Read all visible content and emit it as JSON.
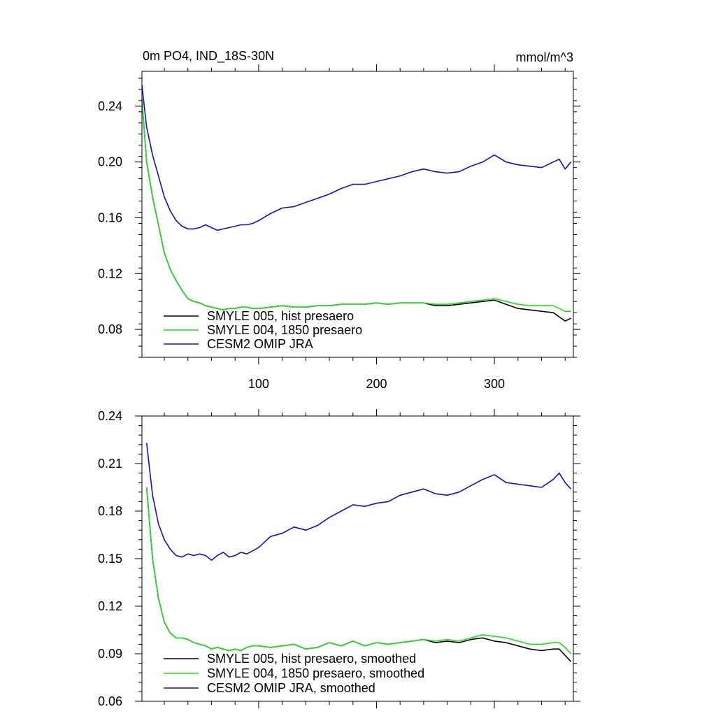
{
  "colors": {
    "black": "#000000",
    "green": "#22dd22",
    "blue": "#1010cc"
  },
  "chart_data": [
    {
      "type": "line",
      "title": "0m PO4, IND_18S-30N",
      "units": "mmol/m^3",
      "xlim": [
        1,
        367
      ],
      "ylim": [
        0.06,
        0.265
      ],
      "xticks": [
        100,
        200,
        300
      ],
      "yticks": [
        0.08,
        0.12,
        0.16,
        0.2,
        0.24
      ],
      "ytick_labels": [
        "0.08",
        "0.12",
        "0.16",
        "0.20",
        "0.24"
      ],
      "grid": false,
      "legend_position": "bottom-left",
      "series": [
        {
          "name": "SMYLE 005, hist presaero",
          "color": "#000000",
          "x": [
            1,
            5,
            10,
            15,
            20,
            25,
            30,
            35,
            40,
            45,
            50,
            55,
            60,
            65,
            70,
            75,
            80,
            85,
            90,
            95,
            100,
            110,
            120,
            130,
            140,
            150,
            160,
            170,
            180,
            190,
            200,
            210,
            220,
            230,
            240,
            250,
            260,
            270,
            280,
            290,
            300,
            310,
            320,
            330,
            340,
            350,
            355,
            360,
            365
          ],
          "y": [
            0.245,
            0.2,
            0.175,
            0.155,
            0.135,
            0.123,
            0.115,
            0.108,
            0.102,
            0.1,
            0.099,
            0.097,
            0.096,
            0.095,
            0.094,
            0.095,
            0.095,
            0.096,
            0.096,
            0.095,
            0.095,
            0.096,
            0.097,
            0.096,
            0.096,
            0.097,
            0.097,
            0.098,
            0.098,
            0.098,
            0.099,
            0.098,
            0.099,
            0.099,
            0.099,
            0.097,
            0.097,
            0.098,
            0.099,
            0.1,
            0.101,
            0.098,
            0.095,
            0.094,
            0.093,
            0.092,
            0.089,
            0.086,
            0.088
          ]
        },
        {
          "name": "SMYLE 004, 1850 presaero",
          "color": "#22dd22",
          "x": [
            1,
            5,
            10,
            15,
            20,
            25,
            30,
            35,
            40,
            45,
            50,
            55,
            60,
            65,
            70,
            75,
            80,
            85,
            90,
            95,
            100,
            110,
            120,
            130,
            140,
            150,
            160,
            170,
            180,
            190,
            200,
            210,
            220,
            230,
            240,
            250,
            260,
            270,
            280,
            290,
            300,
            310,
            320,
            330,
            340,
            350,
            355,
            360,
            365
          ],
          "y": [
            0.245,
            0.2,
            0.175,
            0.155,
            0.135,
            0.123,
            0.115,
            0.108,
            0.102,
            0.1,
            0.099,
            0.097,
            0.096,
            0.095,
            0.094,
            0.095,
            0.095,
            0.096,
            0.096,
            0.095,
            0.095,
            0.096,
            0.097,
            0.096,
            0.096,
            0.097,
            0.097,
            0.098,
            0.098,
            0.098,
            0.099,
            0.098,
            0.099,
            0.099,
            0.099,
            0.098,
            0.098,
            0.099,
            0.1,
            0.101,
            0.102,
            0.1,
            0.098,
            0.097,
            0.097,
            0.097,
            0.095,
            0.093,
            0.093
          ]
        },
        {
          "name": "CESM2 OMIP JRA",
          "color": "#1010cc",
          "x": [
            1,
            5,
            10,
            15,
            20,
            25,
            30,
            35,
            40,
            45,
            50,
            55,
            60,
            65,
            70,
            75,
            80,
            85,
            90,
            95,
            100,
            110,
            120,
            130,
            140,
            150,
            160,
            170,
            180,
            190,
            200,
            210,
            220,
            230,
            240,
            250,
            260,
            270,
            280,
            290,
            300,
            310,
            320,
            330,
            340,
            350,
            355,
            360,
            365
          ],
          "y": [
            0.255,
            0.225,
            0.205,
            0.19,
            0.175,
            0.165,
            0.158,
            0.154,
            0.152,
            0.152,
            0.153,
            0.155,
            0.153,
            0.151,
            0.152,
            0.153,
            0.154,
            0.155,
            0.155,
            0.156,
            0.158,
            0.163,
            0.167,
            0.168,
            0.171,
            0.174,
            0.177,
            0.181,
            0.184,
            0.184,
            0.186,
            0.188,
            0.19,
            0.193,
            0.195,
            0.193,
            0.192,
            0.193,
            0.197,
            0.2,
            0.205,
            0.2,
            0.198,
            0.197,
            0.196,
            0.2,
            0.202,
            0.195,
            0.2
          ]
        }
      ]
    },
    {
      "type": "line",
      "xlim": [
        1,
        367
      ],
      "ylim": [
        0.06,
        0.24
      ],
      "xticks": [
        100,
        200,
        300
      ],
      "yticks": [
        0.06,
        0.09,
        0.12,
        0.15,
        0.18,
        0.21,
        0.24
      ],
      "ytick_labels": [
        "0.06",
        "0.09",
        "0.12",
        "0.15",
        "0.18",
        "0.21",
        "0.24"
      ],
      "grid": false,
      "legend_position": "bottom-left",
      "series": [
        {
          "name": "SMYLE 005, hist presaero, smoothed",
          "color": "#000000",
          "x": [
            5,
            10,
            15,
            20,
            25,
            30,
            35,
            40,
            45,
            50,
            55,
            60,
            65,
            70,
            75,
            80,
            85,
            90,
            95,
            100,
            110,
            120,
            130,
            140,
            150,
            160,
            170,
            180,
            190,
            200,
            210,
            220,
            230,
            240,
            250,
            260,
            270,
            280,
            290,
            300,
            310,
            320,
            330,
            340,
            350,
            355,
            360,
            365
          ],
          "y": [
            0.195,
            0.15,
            0.125,
            0.11,
            0.103,
            0.1,
            0.1,
            0.099,
            0.097,
            0.096,
            0.095,
            0.093,
            0.094,
            0.093,
            0.092,
            0.093,
            0.092,
            0.094,
            0.095,
            0.095,
            0.094,
            0.095,
            0.096,
            0.093,
            0.094,
            0.097,
            0.095,
            0.098,
            0.095,
            0.097,
            0.096,
            0.097,
            0.098,
            0.099,
            0.097,
            0.098,
            0.097,
            0.099,
            0.1,
            0.098,
            0.097,
            0.095,
            0.093,
            0.092,
            0.093,
            0.093,
            0.089,
            0.085
          ]
        },
        {
          "name": "SMYLE 004, 1850 presaero, smoothed",
          "color": "#22dd22",
          "x": [
            5,
            10,
            15,
            20,
            25,
            30,
            35,
            40,
            45,
            50,
            55,
            60,
            65,
            70,
            75,
            80,
            85,
            90,
            95,
            100,
            110,
            120,
            130,
            140,
            150,
            160,
            170,
            180,
            190,
            200,
            210,
            220,
            230,
            240,
            250,
            260,
            270,
            280,
            290,
            300,
            310,
            320,
            330,
            340,
            350,
            355,
            360,
            365
          ],
          "y": [
            0.195,
            0.15,
            0.125,
            0.11,
            0.103,
            0.1,
            0.1,
            0.099,
            0.097,
            0.096,
            0.095,
            0.093,
            0.094,
            0.093,
            0.092,
            0.093,
            0.092,
            0.094,
            0.095,
            0.095,
            0.094,
            0.095,
            0.096,
            0.093,
            0.094,
            0.097,
            0.095,
            0.098,
            0.095,
            0.097,
            0.096,
            0.097,
            0.098,
            0.099,
            0.098,
            0.099,
            0.098,
            0.1,
            0.102,
            0.101,
            0.1,
            0.098,
            0.096,
            0.096,
            0.097,
            0.097,
            0.094,
            0.09
          ]
        },
        {
          "name": "CESM2 OMIP JRA, smoothed",
          "color": "#1010cc",
          "x": [
            5,
            10,
            15,
            20,
            25,
            30,
            35,
            40,
            45,
            50,
            55,
            60,
            65,
            70,
            75,
            80,
            85,
            90,
            95,
            100,
            110,
            120,
            130,
            140,
            150,
            160,
            170,
            180,
            190,
            200,
            210,
            220,
            230,
            240,
            250,
            260,
            270,
            280,
            290,
            300,
            310,
            320,
            330,
            340,
            350,
            355,
            360,
            365
          ],
          "y": [
            0.223,
            0.19,
            0.172,
            0.162,
            0.156,
            0.152,
            0.151,
            0.153,
            0.152,
            0.153,
            0.152,
            0.149,
            0.152,
            0.154,
            0.151,
            0.152,
            0.154,
            0.153,
            0.155,
            0.157,
            0.164,
            0.166,
            0.17,
            0.168,
            0.171,
            0.176,
            0.18,
            0.184,
            0.183,
            0.185,
            0.186,
            0.19,
            0.192,
            0.194,
            0.191,
            0.19,
            0.192,
            0.196,
            0.2,
            0.203,
            0.198,
            0.197,
            0.196,
            0.195,
            0.2,
            0.204,
            0.198,
            0.194
          ]
        }
      ]
    }
  ]
}
